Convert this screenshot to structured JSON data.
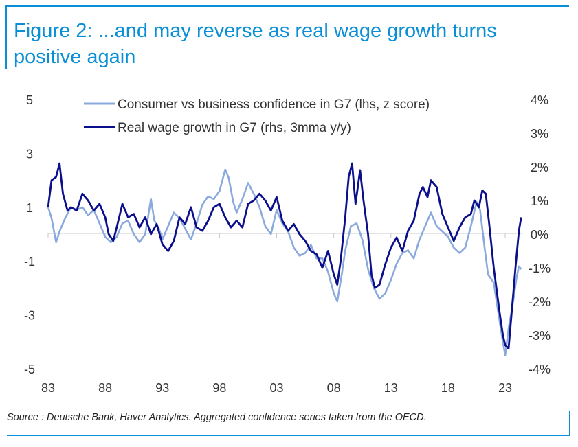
{
  "title": "Figure 2: ...and may reverse as real wage growth turns positive again",
  "source": "Source : Deutsche Bank, Haver Analytics. Aggregated confidence series taken from the OECD.",
  "colors": {
    "frame": "#0a8fd6",
    "lhs_series": "#8aa9dc",
    "rhs_series": "#0b0f8c",
    "axis": "#c8c8c8"
  },
  "chart_data": {
    "type": "line",
    "x_ticks": [
      "83",
      "88",
      "93",
      "98",
      "03",
      "08",
      "13",
      "18",
      "23"
    ],
    "x_range": [
      1983,
      2024.5
    ],
    "ylim_left": [
      -5,
      5
    ],
    "y_ticks_left": [
      "5",
      "3",
      "1",
      "-1",
      "-3",
      "-5"
    ],
    "ylim_right": [
      -4,
      4
    ],
    "y_ticks_right": [
      "4%",
      "3%",
      "2%",
      "1%",
      "0%",
      "-1%",
      "-2%",
      "-3%",
      "-4%"
    ],
    "legend_placement": "top-center",
    "series": [
      {
        "name": "Consumer vs business confidence in G7 (lhs, z score)",
        "axis": "left",
        "points": [
          [
            1983.0,
            1.0
          ],
          [
            1983.3,
            0.6
          ],
          [
            1983.7,
            -0.3
          ],
          [
            1984.0,
            0.1
          ],
          [
            1984.5,
            0.6
          ],
          [
            1985.0,
            1.0
          ],
          [
            1985.5,
            0.9
          ],
          [
            1986.0,
            1.0
          ],
          [
            1986.5,
            0.7
          ],
          [
            1987.0,
            0.9
          ],
          [
            1987.5,
            0.4
          ],
          [
            1988.0,
            -0.1
          ],
          [
            1988.5,
            -0.3
          ],
          [
            1989.0,
            -0.1
          ],
          [
            1989.5,
            0.4
          ],
          [
            1990.0,
            0.5
          ],
          [
            1990.5,
            0.0
          ],
          [
            1991.0,
            -0.3
          ],
          [
            1991.5,
            0.0
          ],
          [
            1992.0,
            1.3
          ],
          [
            1992.3,
            0.5
          ],
          [
            1992.7,
            0.2
          ],
          [
            1993.0,
            -0.2
          ],
          [
            1993.5,
            0.3
          ],
          [
            1994.0,
            0.8
          ],
          [
            1994.5,
            0.6
          ],
          [
            1995.0,
            0.2
          ],
          [
            1995.5,
            -0.2
          ],
          [
            1996.0,
            0.4
          ],
          [
            1996.5,
            1.1
          ],
          [
            1997.0,
            1.4
          ],
          [
            1997.5,
            1.3
          ],
          [
            1998.0,
            1.6
          ],
          [
            1998.5,
            2.4
          ],
          [
            1998.8,
            2.1
          ],
          [
            1999.2,
            1.2
          ],
          [
            1999.5,
            0.8
          ],
          [
            2000.0,
            1.3
          ],
          [
            2000.5,
            1.9
          ],
          [
            2001.0,
            1.5
          ],
          [
            2001.5,
            1.0
          ],
          [
            2002.0,
            0.3
          ],
          [
            2002.5,
            0.0
          ],
          [
            2003.0,
            0.9
          ],
          [
            2003.5,
            0.4
          ],
          [
            2004.0,
            0.1
          ],
          [
            2004.5,
            -0.5
          ],
          [
            2005.0,
            -0.8
          ],
          [
            2005.5,
            -0.7
          ],
          [
            2006.0,
            -0.4
          ],
          [
            2006.5,
            -0.9
          ],
          [
            2007.0,
            -0.9
          ],
          [
            2007.5,
            -1.4
          ],
          [
            2008.0,
            -2.2
          ],
          [
            2008.3,
            -2.5
          ],
          [
            2008.7,
            -1.5
          ],
          [
            2009.0,
            -0.6
          ],
          [
            2009.5,
            0.3
          ],
          [
            2010.0,
            0.4
          ],
          [
            2010.5,
            -0.2
          ],
          [
            2011.0,
            -1.3
          ],
          [
            2011.5,
            -2.0
          ],
          [
            2012.0,
            -2.4
          ],
          [
            2012.5,
            -2.2
          ],
          [
            2013.0,
            -1.7
          ],
          [
            2013.5,
            -1.1
          ],
          [
            2014.0,
            -0.7
          ],
          [
            2014.5,
            -0.6
          ],
          [
            2015.0,
            -0.9
          ],
          [
            2015.5,
            -0.2
          ],
          [
            2016.0,
            0.3
          ],
          [
            2016.5,
            0.8
          ],
          [
            2017.0,
            0.3
          ],
          [
            2017.5,
            0.1
          ],
          [
            2018.0,
            -0.1
          ],
          [
            2018.5,
            -0.5
          ],
          [
            2019.0,
            -0.7
          ],
          [
            2019.5,
            -0.5
          ],
          [
            2020.0,
            0.3
          ],
          [
            2020.5,
            1.2
          ],
          [
            2020.8,
            0.9
          ],
          [
            2021.2,
            -0.5
          ],
          [
            2021.5,
            -1.5
          ],
          [
            2022.0,
            -1.8
          ],
          [
            2022.5,
            -3.2
          ],
          [
            2022.8,
            -4.0
          ],
          [
            2023.0,
            -4.5
          ],
          [
            2023.3,
            -3.5
          ],
          [
            2023.7,
            -2.5
          ],
          [
            2024.0,
            -1.6
          ],
          [
            2024.2,
            -1.2
          ],
          [
            2024.4,
            -1.3
          ]
        ]
      },
      {
        "name": "Real wage growth in G7 (rhs, 3mma y/y)",
        "axis": "right",
        "points": [
          [
            1983.0,
            0.8
          ],
          [
            1983.3,
            1.6
          ],
          [
            1983.7,
            1.7
          ],
          [
            1984.0,
            2.1
          ],
          [
            1984.3,
            1.2
          ],
          [
            1984.7,
            0.7
          ],
          [
            1985.0,
            0.8
          ],
          [
            1985.5,
            0.7
          ],
          [
            1986.0,
            1.2
          ],
          [
            1986.5,
            1.0
          ],
          [
            1987.0,
            0.7
          ],
          [
            1987.5,
            0.9
          ],
          [
            1988.0,
            0.5
          ],
          [
            1988.3,
            0.0
          ],
          [
            1988.7,
            -0.2
          ],
          [
            1989.0,
            0.2
          ],
          [
            1989.5,
            0.9
          ],
          [
            1990.0,
            0.5
          ],
          [
            1990.5,
            0.6
          ],
          [
            1991.0,
            0.2
          ],
          [
            1991.5,
            0.5
          ],
          [
            1992.0,
            0.0
          ],
          [
            1992.5,
            0.3
          ],
          [
            1993.0,
            -0.3
          ],
          [
            1993.5,
            -0.5
          ],
          [
            1994.0,
            -0.2
          ],
          [
            1994.5,
            0.5
          ],
          [
            1995.0,
            0.3
          ],
          [
            1995.5,
            0.8
          ],
          [
            1996.0,
            0.2
          ],
          [
            1996.5,
            0.1
          ],
          [
            1997.0,
            0.4
          ],
          [
            1997.5,
            0.8
          ],
          [
            1998.0,
            0.9
          ],
          [
            1998.5,
            0.5
          ],
          [
            1999.0,
            0.2
          ],
          [
            1999.5,
            0.4
          ],
          [
            2000.0,
            0.2
          ],
          [
            2000.5,
            0.9
          ],
          [
            2001.0,
            1.0
          ],
          [
            2001.5,
            1.2
          ],
          [
            2002.0,
            1.0
          ],
          [
            2002.5,
            0.7
          ],
          [
            2003.0,
            1.1
          ],
          [
            2003.5,
            0.4
          ],
          [
            2004.0,
            0.1
          ],
          [
            2004.5,
            0.3
          ],
          [
            2005.0,
            0.0
          ],
          [
            2005.5,
            -0.2
          ],
          [
            2006.0,
            -0.5
          ],
          [
            2006.5,
            -0.6
          ],
          [
            2007.0,
            -1.0
          ],
          [
            2007.5,
            -0.5
          ],
          [
            2008.0,
            -1.2
          ],
          [
            2008.3,
            -1.5
          ],
          [
            2008.6,
            -0.8
          ],
          [
            2009.0,
            0.5
          ],
          [
            2009.3,
            1.7
          ],
          [
            2009.6,
            2.1
          ],
          [
            2009.9,
            0.9
          ],
          [
            2010.3,
            1.9
          ],
          [
            2010.6,
            1.0
          ],
          [
            2011.0,
            0.0
          ],
          [
            2011.3,
            -1.2
          ],
          [
            2011.6,
            -1.6
          ],
          [
            2012.0,
            -1.5
          ],
          [
            2012.5,
            -0.9
          ],
          [
            2013.0,
            -0.4
          ],
          [
            2013.5,
            -0.1
          ],
          [
            2014.0,
            -0.5
          ],
          [
            2014.5,
            0.1
          ],
          [
            2015.0,
            0.4
          ],
          [
            2015.5,
            1.2
          ],
          [
            2015.8,
            1.4
          ],
          [
            2016.2,
            1.1
          ],
          [
            2016.5,
            1.6
          ],
          [
            2017.0,
            1.4
          ],
          [
            2017.5,
            0.6
          ],
          [
            2018.0,
            0.2
          ],
          [
            2018.5,
            -0.2
          ],
          [
            2019.0,
            0.2
          ],
          [
            2019.5,
            0.5
          ],
          [
            2020.0,
            0.6
          ],
          [
            2020.3,
            1.0
          ],
          [
            2020.7,
            0.8
          ],
          [
            2021.0,
            1.3
          ],
          [
            2021.3,
            1.2
          ],
          [
            2021.6,
            0.3
          ],
          [
            2022.0,
            -1.0
          ],
          [
            2022.5,
            -2.3
          ],
          [
            2022.8,
            -3.0
          ],
          [
            2023.0,
            -3.3
          ],
          [
            2023.3,
            -3.4
          ],
          [
            2023.6,
            -2.2
          ],
          [
            2023.9,
            -1.0
          ],
          [
            2024.2,
            0.1
          ],
          [
            2024.4,
            0.5
          ]
        ]
      }
    ]
  }
}
